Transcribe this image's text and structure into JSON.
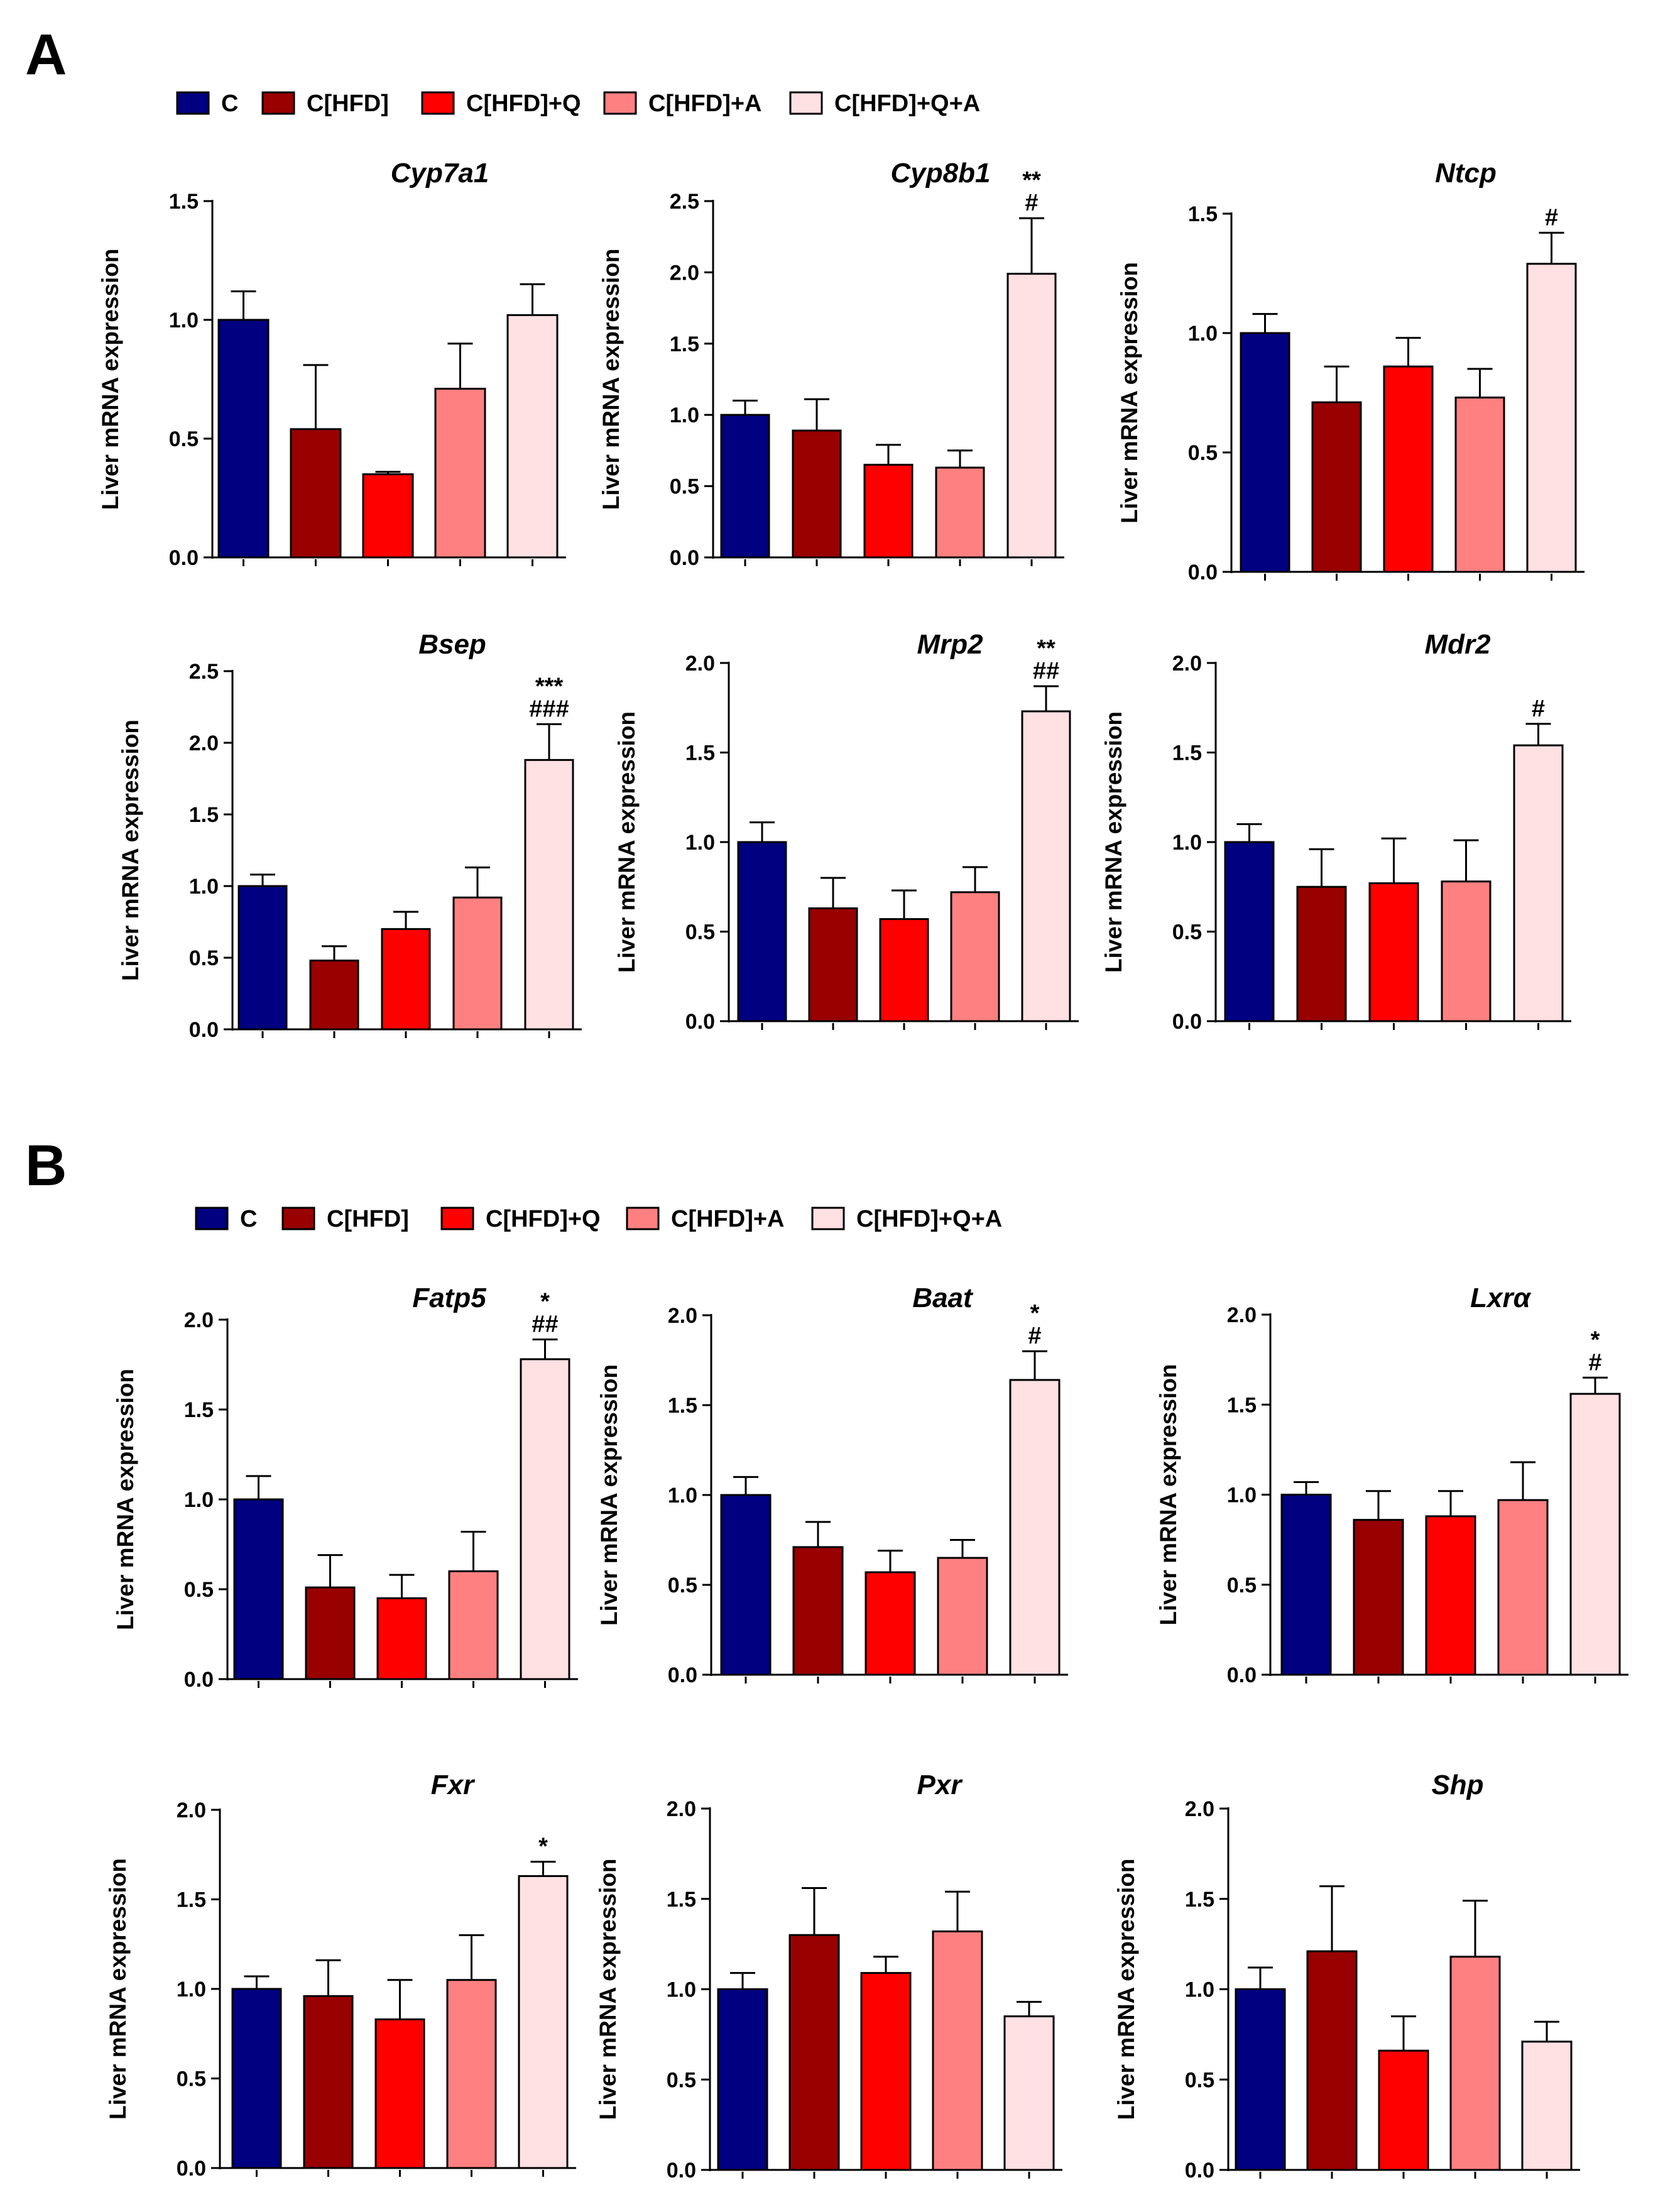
{
  "panels": [
    {
      "label": "A"
    },
    {
      "label": "B"
    }
  ],
  "legend": {
    "items": [
      {
        "label": "C",
        "color": "#000080"
      },
      {
        "label": "C[HFD]",
        "color": "#990000"
      },
      {
        "label": "C[HFD]+Q",
        "color": "#ff0000"
      },
      {
        "label": "C[HFD]+A",
        "color": "#ff8080"
      },
      {
        "label": "C[HFD]+Q+A",
        "color": "#ffe0e3"
      }
    ]
  },
  "chart_data": [
    {
      "type": "bar",
      "panel": "A",
      "title": "Cyp7a1",
      "ylabel": "Liver mRNA expression",
      "categories": [
        "C",
        "C[HFD]",
        "C[HFD]+Q",
        "C[HFD]+A",
        "C[HFD]+Q+A"
      ],
      "values": [
        1.0,
        0.54,
        0.35,
        0.71,
        1.02
      ],
      "errors": [
        0.12,
        0.27,
        0.01,
        0.19,
        0.13
      ],
      "ylim": [
        0,
        1.5
      ],
      "yticks": [
        "0.0",
        "0.5",
        "1.0",
        "1.5"
      ],
      "annotations": [
        "",
        "",
        "",
        "",
        ""
      ]
    },
    {
      "type": "bar",
      "panel": "A",
      "title": "Cyp8b1",
      "ylabel": "Liver mRNA expression",
      "categories": [
        "C",
        "C[HFD]",
        "C[HFD]+Q",
        "C[HFD]+A",
        "C[HFD]+Q+A"
      ],
      "values": [
        1.0,
        0.89,
        0.65,
        0.63,
        1.99
      ],
      "errors": [
        0.1,
        0.22,
        0.14,
        0.12,
        0.39
      ],
      "ylim": [
        0,
        2.5
      ],
      "yticks": [
        "0.0",
        "0.5",
        "1.0",
        "1.5",
        "2.0",
        "2.5"
      ],
      "annotations": [
        "",
        "",
        "",
        "",
        "**\n#"
      ]
    },
    {
      "type": "bar",
      "panel": "A",
      "title": "Ntcp",
      "ylabel": "Liver mRNA expression",
      "categories": [
        "C",
        "C[HFD]",
        "C[HFD]+Q",
        "C[HFD]+A",
        "C[HFD]+Q+A"
      ],
      "values": [
        1.0,
        0.71,
        0.86,
        0.73,
        1.29
      ],
      "errors": [
        0.08,
        0.15,
        0.12,
        0.12,
        0.13
      ],
      "ylim": [
        0,
        1.5
      ],
      "yticks": [
        "0.0",
        "0.5",
        "1.0",
        "1.5"
      ],
      "annotations": [
        "",
        "",
        "",
        "",
        "#"
      ]
    },
    {
      "type": "bar",
      "panel": "A",
      "title": "Bsep",
      "ylabel": "Liver mRNA expression",
      "categories": [
        "C",
        "C[HFD]",
        "C[HFD]+Q",
        "C[HFD]+A",
        "C[HFD]+Q+A"
      ],
      "values": [
        1.0,
        0.48,
        0.7,
        0.92,
        1.88
      ],
      "errors": [
        0.08,
        0.1,
        0.12,
        0.21,
        0.25
      ],
      "ylim": [
        0,
        2.5
      ],
      "yticks": [
        "0.0",
        "0.5",
        "1.0",
        "1.5",
        "2.0",
        "2.5"
      ],
      "annotations": [
        "",
        "",
        "",
        "",
        "***\n###"
      ]
    },
    {
      "type": "bar",
      "panel": "A",
      "title": "Mrp2",
      "ylabel": "Liver mRNA expression",
      "categories": [
        "C",
        "C[HFD]",
        "C[HFD]+Q",
        "C[HFD]+A",
        "C[HFD]+Q+A"
      ],
      "values": [
        1.0,
        0.63,
        0.57,
        0.72,
        1.73
      ],
      "errors": [
        0.11,
        0.17,
        0.16,
        0.14,
        0.14
      ],
      "ylim": [
        0,
        2.0
      ],
      "yticks": [
        "0.0",
        "0.5",
        "1.0",
        "1.5",
        "2.0"
      ],
      "annotations": [
        "",
        "",
        "",
        "",
        "**\n##"
      ]
    },
    {
      "type": "bar",
      "panel": "A",
      "title": "Mdr2",
      "ylabel": "Liver mRNA expression",
      "categories": [
        "C",
        "C[HFD]",
        "C[HFD]+Q",
        "C[HFD]+A",
        "C[HFD]+Q+A"
      ],
      "values": [
        1.0,
        0.75,
        0.77,
        0.78,
        1.54
      ],
      "errors": [
        0.1,
        0.21,
        0.25,
        0.23,
        0.12
      ],
      "ylim": [
        0,
        2.0
      ],
      "yticks": [
        "0.0",
        "0.5",
        "1.0",
        "1.5",
        "2.0"
      ],
      "annotations": [
        "",
        "",
        "",
        "",
        "#"
      ]
    },
    {
      "type": "bar",
      "panel": "B",
      "title": "Fatp5",
      "ylabel": "Liver mRNA expression",
      "categories": [
        "C",
        "C[HFD]",
        "C[HFD]+Q",
        "C[HFD]+A",
        "C[HFD]+Q+A"
      ],
      "values": [
        1.0,
        0.51,
        0.45,
        0.6,
        1.78
      ],
      "errors": [
        0.13,
        0.18,
        0.13,
        0.22,
        0.11
      ],
      "ylim": [
        0,
        2.0
      ],
      "yticks": [
        "0.0",
        "0.5",
        "1.0",
        "1.5",
        "2.0"
      ],
      "annotations": [
        "",
        "",
        "",
        "",
        "*\n##"
      ]
    },
    {
      "type": "bar",
      "panel": "B",
      "title": "Baat",
      "ylabel": "Liver mRNA expression",
      "categories": [
        "C",
        "C[HFD]",
        "C[HFD]+Q",
        "C[HFD]+A",
        "C[HFD]+Q+A"
      ],
      "values": [
        1.0,
        0.71,
        0.57,
        0.65,
        1.64
      ],
      "errors": [
        0.1,
        0.14,
        0.12,
        0.1,
        0.16
      ],
      "ylim": [
        0,
        2.0
      ],
      "yticks": [
        "0.0",
        "0.5",
        "1.0",
        "1.5",
        "2.0"
      ],
      "annotations": [
        "",
        "",
        "",
        "",
        "*\n#"
      ]
    },
    {
      "type": "bar",
      "panel": "B",
      "title": "Lxrα",
      "ylabel": "Liver mRNA expression",
      "categories": [
        "C",
        "C[HFD]",
        "C[HFD]+Q",
        "C[HFD]+A",
        "C[HFD]+Q+A"
      ],
      "values": [
        1.0,
        0.86,
        0.88,
        0.97,
        1.56
      ],
      "errors": [
        0.07,
        0.16,
        0.14,
        0.21,
        0.09
      ],
      "ylim": [
        0,
        2.0
      ],
      "yticks": [
        "0.0",
        "0.5",
        "1.0",
        "1.5",
        "2.0"
      ],
      "annotations": [
        "",
        "",
        "",
        "",
        "*\n#"
      ]
    },
    {
      "type": "bar",
      "panel": "B",
      "title": "Fxr",
      "ylabel": "Liver mRNA expression",
      "categories": [
        "C",
        "C[HFD]",
        "C[HFD]+Q",
        "C[HFD]+A",
        "C[HFD]+Q+A"
      ],
      "values": [
        1.0,
        0.96,
        0.83,
        1.05,
        1.63
      ],
      "errors": [
        0.07,
        0.2,
        0.22,
        0.25,
        0.08
      ],
      "ylim": [
        0,
        2.0
      ],
      "yticks": [
        "0.0",
        "0.5",
        "1.0",
        "1.5",
        "2.0"
      ],
      "annotations": [
        "",
        "",
        "",
        "",
        "*"
      ]
    },
    {
      "type": "bar",
      "panel": "B",
      "title": "Pxr",
      "ylabel": "Liver mRNA expression",
      "categories": [
        "C",
        "C[HFD]",
        "C[HFD]+Q",
        "C[HFD]+A",
        "C[HFD]+Q+A"
      ],
      "values": [
        1.0,
        1.3,
        1.09,
        1.32,
        0.85
      ],
      "errors": [
        0.09,
        0.26,
        0.09,
        0.22,
        0.08
      ],
      "ylim": [
        0,
        2.0
      ],
      "yticks": [
        "0.0",
        "0.5",
        "1.0",
        "1.5",
        "2.0"
      ],
      "annotations": [
        "",
        "",
        "",
        "",
        ""
      ]
    },
    {
      "type": "bar",
      "panel": "B",
      "title": "Shp",
      "ylabel": "Liver mRNA expression",
      "categories": [
        "C",
        "C[HFD]",
        "C[HFD]+Q",
        "C[HFD]+A",
        "C[HFD]+Q+A"
      ],
      "values": [
        1.0,
        1.21,
        0.66,
        1.18,
        0.71
      ],
      "errors": [
        0.12,
        0.36,
        0.19,
        0.31,
        0.11
      ],
      "ylim": [
        0,
        2.0
      ],
      "yticks": [
        "0.0",
        "0.5",
        "1.0",
        "1.5",
        "2.0"
      ],
      "annotations": [
        "",
        "",
        "",
        "",
        ""
      ]
    }
  ]
}
